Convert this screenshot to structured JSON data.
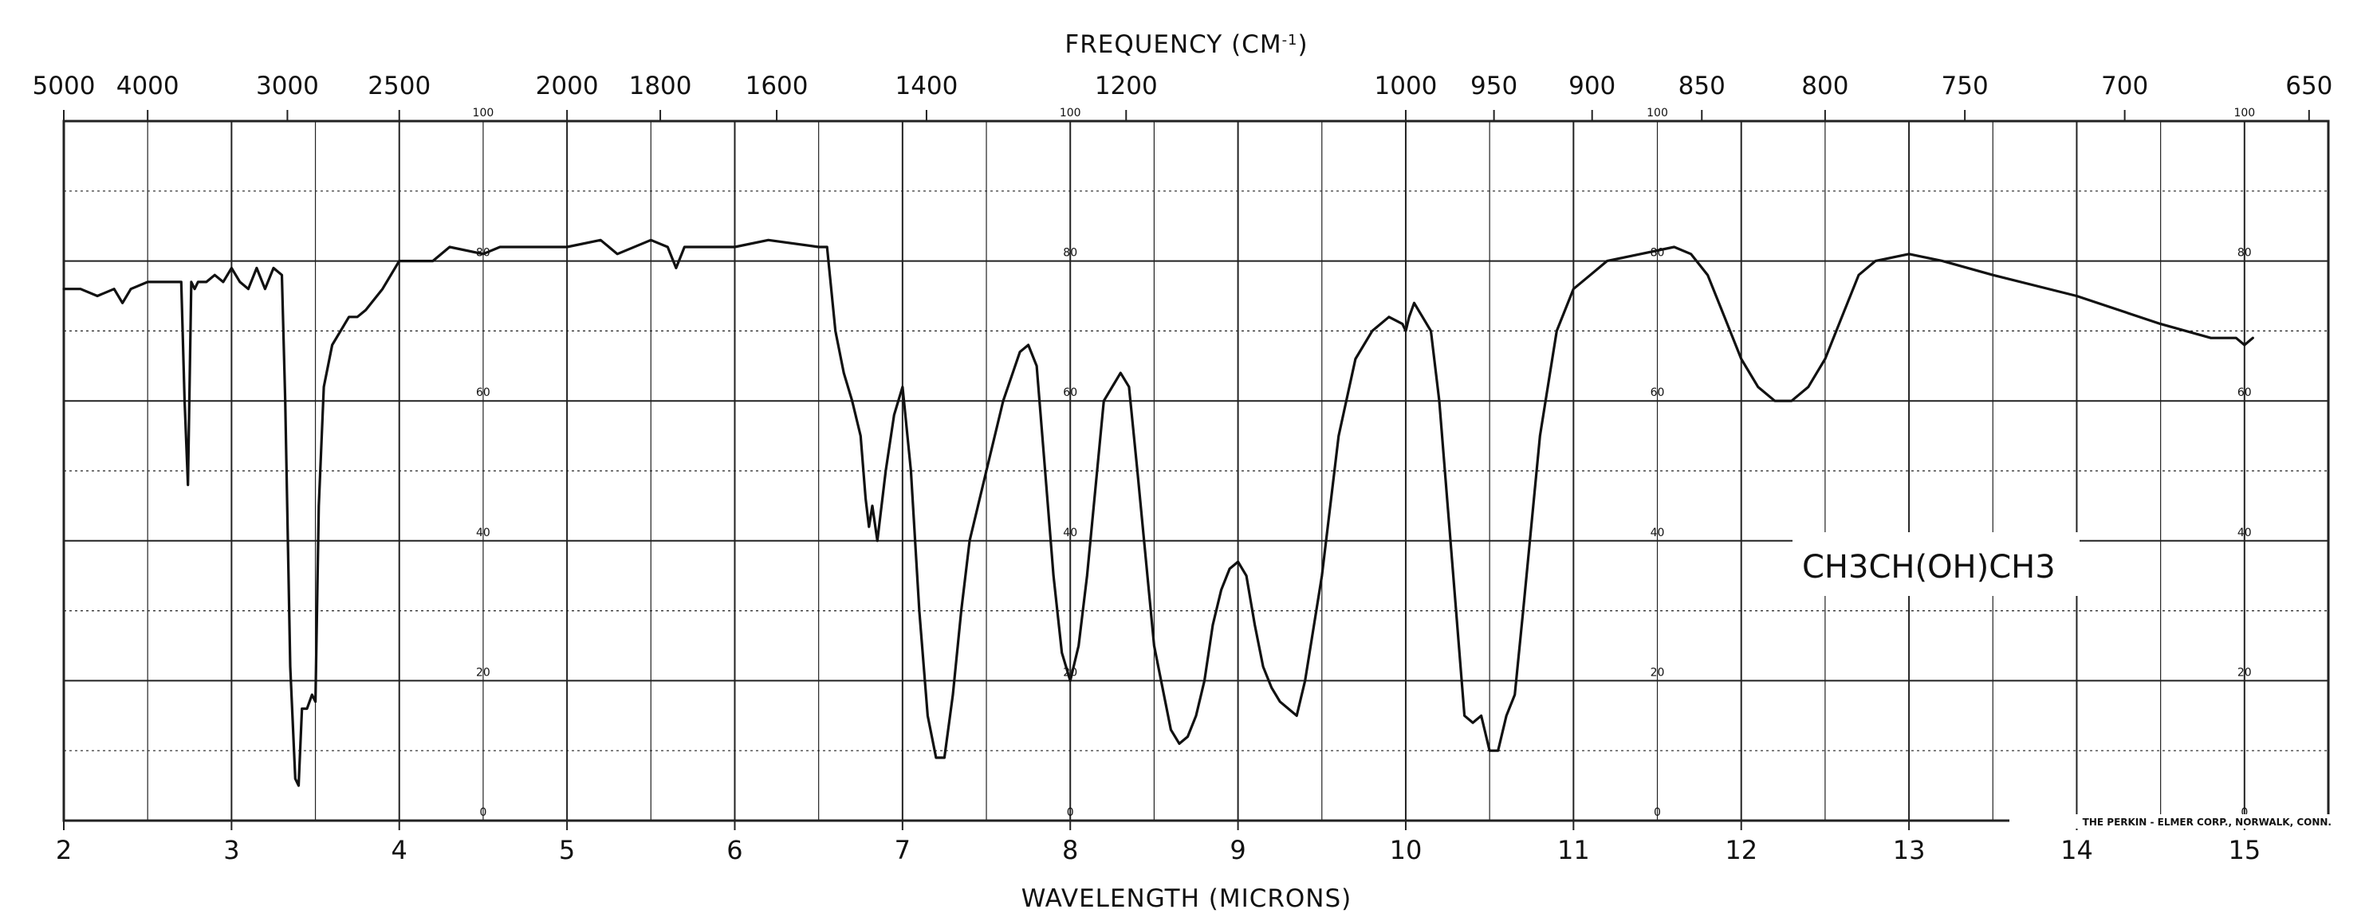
{
  "chart_data": {
    "type": "line",
    "title": "",
    "xlabel": "WAVELENGTH (MICRONS)",
    "x2label": "FREQUENCY (CM-1)",
    "x2label_main": "FREQUENCY (CM",
    "x2label_sup": "-1",
    "x2label_close": ")",
    "ylabel": "",
    "xlim": [
      2,
      15.5
    ],
    "ylim": [
      0,
      100
    ],
    "grid": true,
    "legend": "none",
    "line_color": "#111111",
    "grid_color": "#222222",
    "wavelength_ticks": [
      {
        "value": 2,
        "label": "2"
      },
      {
        "value": 3,
        "label": "3"
      },
      {
        "value": 4,
        "label": "4"
      },
      {
        "value": 5,
        "label": "5"
      },
      {
        "value": 6,
        "label": "6"
      },
      {
        "value": 7,
        "label": "7"
      },
      {
        "value": 8,
        "label": "8"
      },
      {
        "value": 9,
        "label": "9"
      },
      {
        "value": 10,
        "label": "10"
      },
      {
        "value": 11,
        "label": "11"
      },
      {
        "value": 12,
        "label": "12"
      },
      {
        "value": 13,
        "label": "13"
      },
      {
        "value": 14,
        "label": "14"
      },
      {
        "value": 15,
        "label": "15"
      }
    ],
    "frequency_ticks": [
      {
        "label": "5000",
        "wavelength": 2.0
      },
      {
        "label": "4000",
        "wavelength": 2.5
      },
      {
        "label": "3000",
        "wavelength": 3.333
      },
      {
        "label": "2500",
        "wavelength": 4.0
      },
      {
        "label": "2000",
        "wavelength": 5.0
      },
      {
        "label": "1800",
        "wavelength": 5.556
      },
      {
        "label": "1600",
        "wavelength": 6.25
      },
      {
        "label": "1400",
        "wavelength": 7.143
      },
      {
        "label": "1200",
        "wavelength": 8.333
      },
      {
        "label": "1000",
        "wavelength": 10.0
      },
      {
        "label": "950",
        "wavelength": 10.526
      },
      {
        "label": "900",
        "wavelength": 11.111
      },
      {
        "label": "850",
        "wavelength": 11.765
      },
      {
        "label": "800",
        "wavelength": 12.5
      },
      {
        "label": "750",
        "wavelength": 13.333
      },
      {
        "label": "700",
        "wavelength": 14.286
      },
      {
        "label": "650",
        "wavelength": 15.385
      }
    ],
    "transmittance_labels": [
      "0",
      "20",
      "40",
      "60",
      "80",
      "100"
    ],
    "transmittance_label_columns": [
      4.5,
      8.0,
      11.5,
      15.0
    ],
    "series": [
      {
        "x": [
          2.0,
          2.1,
          2.2,
          2.3,
          2.35,
          2.4,
          2.5,
          2.6,
          2.7,
          2.72,
          2.74,
          2.76,
          2.78,
          2.8,
          2.85,
          2.9,
          2.95,
          3.0,
          3.05,
          3.1,
          3.15,
          3.2,
          3.25,
          3.3,
          3.32,
          3.35,
          3.38,
          3.4,
          3.42,
          3.45,
          3.48,
          3.5,
          3.52,
          3.55,
          3.6,
          3.65,
          3.7,
          3.75,
          3.8,
          3.9,
          4.0,
          4.2,
          4.3,
          4.5,
          4.6,
          4.8,
          5.0,
          5.2,
          5.3,
          5.5,
          5.6,
          5.65,
          5.7,
          5.8,
          6.0,
          6.2,
          6.5,
          6.55,
          6.6,
          6.65,
          6.7,
          6.75,
          6.78,
          6.8,
          6.82,
          6.85,
          6.9,
          6.95,
          7.0,
          7.05,
          7.1,
          7.15,
          7.2,
          7.25,
          7.3,
          7.35,
          7.4,
          7.5,
          7.6,
          7.7,
          7.75,
          7.8,
          7.85,
          7.9,
          7.95,
          8.0,
          8.05,
          8.1,
          8.2,
          8.3,
          8.35,
          8.4,
          8.5,
          8.6,
          8.65,
          8.7,
          8.75,
          8.8,
          8.85,
          8.9,
          8.95,
          9.0,
          9.05,
          9.1,
          9.15,
          9.2,
          9.25,
          9.3,
          9.35,
          9.4,
          9.5,
          9.6,
          9.7,
          9.8,
          9.9,
          9.98,
          10.0,
          10.02,
          10.05,
          10.1,
          10.15,
          10.2,
          10.3,
          10.35,
          10.4,
          10.45,
          10.5,
          10.55,
          10.6,
          10.65,
          10.7,
          10.8,
          10.9,
          11.0,
          11.1,
          11.2,
          11.4,
          11.6,
          11.7,
          11.8,
          11.9,
          12.0,
          12.1,
          12.2,
          12.3,
          12.4,
          12.5,
          12.6,
          12.7,
          12.8,
          13.0,
          13.2,
          13.5,
          14.0,
          14.5,
          14.8,
          14.95,
          15.0,
          15.05
        ],
        "y": [
          76,
          76,
          75,
          76,
          74,
          76,
          77,
          77,
          77,
          60,
          48,
          77,
          76,
          77,
          77,
          78,
          77,
          79,
          77,
          76,
          79,
          76,
          79,
          78,
          60,
          22,
          6,
          5,
          16,
          16,
          18,
          17,
          45,
          62,
          68,
          70,
          72,
          72,
          73,
          76,
          80,
          80,
          82,
          81,
          82,
          82,
          82,
          83,
          81,
          83,
          82,
          79,
          82,
          82,
          82,
          83,
          82,
          82,
          70,
          64,
          60,
          55,
          46,
          42,
          45,
          40,
          50,
          58,
          62,
          50,
          30,
          15,
          9,
          9,
          18,
          30,
          40,
          50,
          60,
          67,
          68,
          65,
          50,
          35,
          24,
          20,
          25,
          35,
          60,
          64,
          62,
          50,
          25,
          13,
          11,
          12,
          15,
          20,
          28,
          33,
          36,
          37,
          35,
          28,
          22,
          19,
          17,
          16,
          15,
          20,
          35,
          55,
          66,
          70,
          72,
          71,
          70,
          72,
          74,
          72,
          70,
          60,
          30,
          15,
          14,
          15,
          10,
          10,
          15,
          18,
          30,
          55,
          70,
          76,
          78,
          80,
          81,
          82,
          81,
          78,
          72,
          66,
          62,
          60,
          60,
          62,
          66,
          72,
          78,
          80,
          81,
          80,
          78,
          75,
          71,
          69,
          69,
          68,
          69
        ]
      }
    ],
    "annotations": {
      "formula": "CH3CH(OH)CH3",
      "manufacturer": "THE PERKIN - ELMER CORP., NORWALK, CONN."
    }
  }
}
